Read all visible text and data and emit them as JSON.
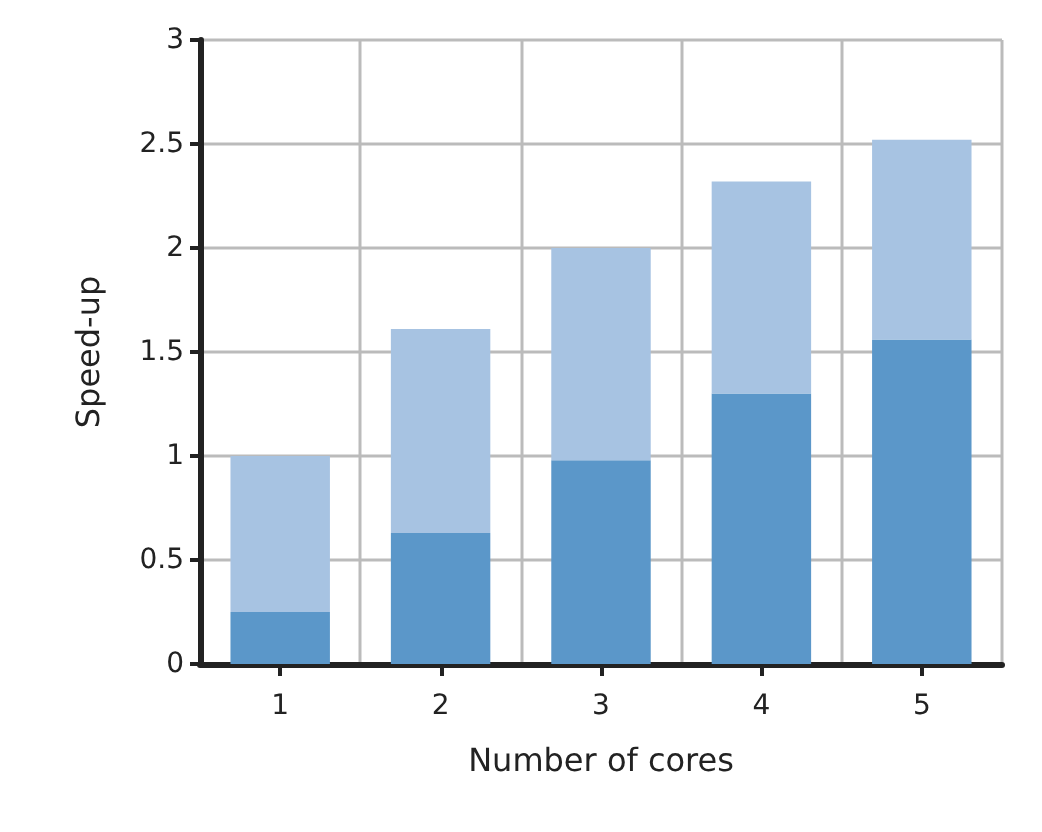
{
  "chart_data": {
    "type": "bar",
    "xlabel": "Number of cores",
    "ylabel": "Speed-up",
    "categories": [
      "1",
      "2",
      "3",
      "4",
      "5"
    ],
    "series": [
      {
        "color": "#5b97c9",
        "values": [
          0.25,
          0.63,
          0.98,
          1.3,
          1.56
        ]
      },
      {
        "color": "#a7c3e2",
        "values": [
          0.75,
          0.98,
          1.02,
          1.02,
          0.96
        ]
      }
    ],
    "stacked": true,
    "ylim": [
      0,
      3
    ],
    "yticks": [
      0,
      0.5,
      1,
      1.5,
      2,
      2.5,
      3
    ],
    "grid": true
  }
}
